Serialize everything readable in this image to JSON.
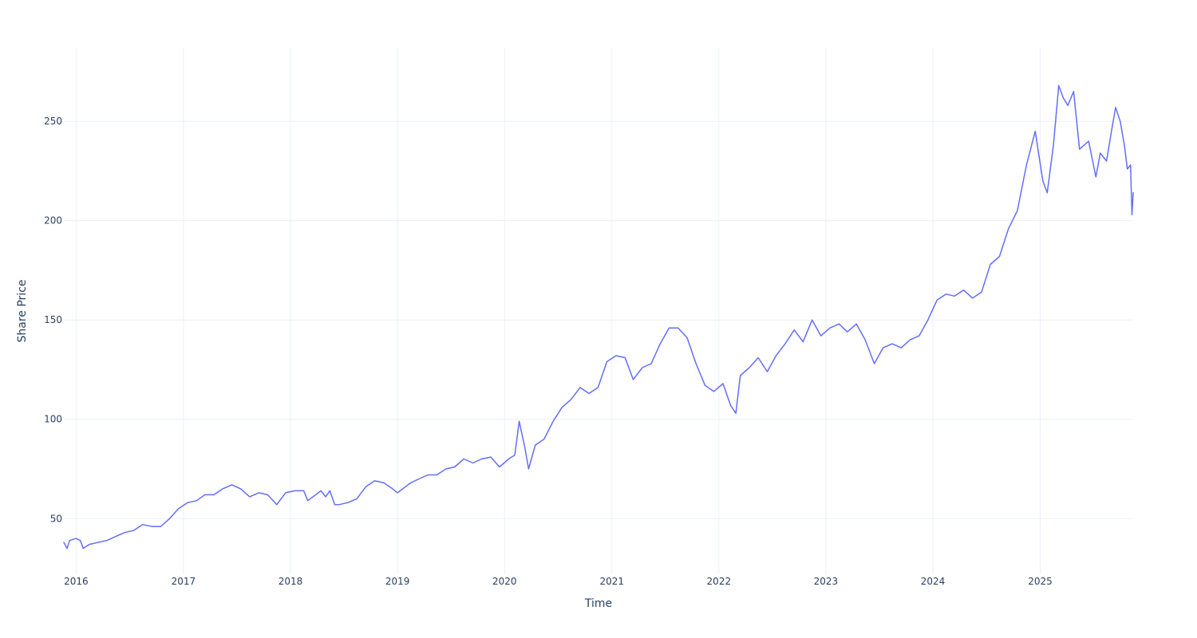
{
  "chart_data": {
    "type": "line",
    "title": "",
    "xlabel": "Time",
    "ylabel": "Share Price",
    "x_type": "date",
    "xlim": [
      "2015-11-20",
      "2025-11-14"
    ],
    "ylim": [
      22,
      287
    ],
    "x_ticks": [
      {
        "value": "2016-01-01",
        "label": "2016"
      },
      {
        "value": "2017-01-01",
        "label": "2017"
      },
      {
        "value": "2018-01-01",
        "label": "2018"
      },
      {
        "value": "2019-01-01",
        "label": "2019"
      },
      {
        "value": "2020-01-01",
        "label": "2020"
      },
      {
        "value": "2021-01-01",
        "label": "2021"
      },
      {
        "value": "2022-01-01",
        "label": "2022"
      },
      {
        "value": "2023-01-01",
        "label": "2023"
      },
      {
        "value": "2024-01-01",
        "label": "2024"
      },
      {
        "value": "2025-01-01",
        "label": "2025"
      }
    ],
    "y_ticks": [
      {
        "value": 50,
        "label": "50"
      },
      {
        "value": 100,
        "label": "100"
      },
      {
        "value": 150,
        "label": "150"
      },
      {
        "value": 200,
        "label": "200"
      },
      {
        "value": 250,
        "label": "250"
      }
    ],
    "grid": true,
    "legend": "none",
    "series": [
      {
        "color": "#636efa",
        "points": [
          [
            "2015-11-20",
            38
          ],
          [
            "2015-12-01",
            35
          ],
          [
            "2015-12-10",
            39
          ],
          [
            "2015-12-31",
            40
          ],
          [
            "2016-01-15",
            39
          ],
          [
            "2016-01-25",
            35
          ],
          [
            "2016-02-15",
            37
          ],
          [
            "2016-03-15",
            38
          ],
          [
            "2016-04-15",
            39
          ],
          [
            "2016-05-15",
            41
          ],
          [
            "2016-06-15",
            43
          ],
          [
            "2016-07-15",
            44
          ],
          [
            "2016-08-15",
            47
          ],
          [
            "2016-09-15",
            46
          ],
          [
            "2016-10-15",
            46
          ],
          [
            "2016-11-15",
            50
          ],
          [
            "2016-12-15",
            55
          ],
          [
            "2017-01-15",
            58
          ],
          [
            "2017-02-15",
            59
          ],
          [
            "2017-03-15",
            62
          ],
          [
            "2017-04-15",
            62
          ],
          [
            "2017-05-15",
            65
          ],
          [
            "2017-06-15",
            67
          ],
          [
            "2017-07-15",
            65
          ],
          [
            "2017-08-15",
            61
          ],
          [
            "2017-09-15",
            63
          ],
          [
            "2017-10-15",
            62
          ],
          [
            "2017-11-15",
            57
          ],
          [
            "2017-12-15",
            63
          ],
          [
            "2018-01-15",
            64
          ],
          [
            "2018-02-15",
            64
          ],
          [
            "2018-03-01",
            59
          ],
          [
            "2018-04-15",
            64
          ],
          [
            "2018-05-01",
            61
          ],
          [
            "2018-05-15",
            64
          ],
          [
            "2018-06-01",
            57
          ],
          [
            "2018-06-15",
            57
          ],
          [
            "2018-07-15",
            58
          ],
          [
            "2018-08-15",
            60
          ],
          [
            "2018-09-15",
            66
          ],
          [
            "2018-10-15",
            69
          ],
          [
            "2018-11-15",
            68
          ],
          [
            "2018-12-15",
            65
          ],
          [
            "2019-01-01",
            63
          ],
          [
            "2019-02-15",
            68
          ],
          [
            "2019-03-15",
            70
          ],
          [
            "2019-04-15",
            72
          ],
          [
            "2019-05-15",
            72
          ],
          [
            "2019-06-15",
            75
          ],
          [
            "2019-07-15",
            76
          ],
          [
            "2019-08-15",
            80
          ],
          [
            "2019-09-15",
            78
          ],
          [
            "2019-10-15",
            80
          ],
          [
            "2019-11-15",
            81
          ],
          [
            "2019-12-15",
            76
          ],
          [
            "2020-01-15",
            80
          ],
          [
            "2020-02-05",
            82
          ],
          [
            "2020-02-20",
            99
          ],
          [
            "2020-03-10",
            86
          ],
          [
            "2020-03-23",
            75
          ],
          [
            "2020-04-15",
            87
          ],
          [
            "2020-05-15",
            90
          ],
          [
            "2020-06-15",
            99
          ],
          [
            "2020-07-15",
            106
          ],
          [
            "2020-08-15",
            110
          ],
          [
            "2020-09-15",
            116
          ],
          [
            "2020-10-15",
            113
          ],
          [
            "2020-11-15",
            116
          ],
          [
            "2020-12-15",
            129
          ],
          [
            "2021-01-15",
            132
          ],
          [
            "2021-02-15",
            131
          ],
          [
            "2021-03-15",
            120
          ],
          [
            "2021-04-15",
            126
          ],
          [
            "2021-05-15",
            128
          ],
          [
            "2021-06-15",
            138
          ],
          [
            "2021-07-15",
            146
          ],
          [
            "2021-08-15",
            146
          ],
          [
            "2021-09-15",
            141
          ],
          [
            "2021-10-15",
            128
          ],
          [
            "2021-11-15",
            117
          ],
          [
            "2021-12-15",
            114
          ],
          [
            "2022-01-15",
            118
          ],
          [
            "2022-02-10",
            107
          ],
          [
            "2022-02-28",
            103
          ],
          [
            "2022-03-15",
            122
          ],
          [
            "2022-04-15",
            126
          ],
          [
            "2022-05-15",
            131
          ],
          [
            "2022-06-15",
            124
          ],
          [
            "2022-07-15",
            132
          ],
          [
            "2022-08-15",
            138
          ],
          [
            "2022-09-15",
            145
          ],
          [
            "2022-10-15",
            139
          ],
          [
            "2022-11-15",
            150
          ],
          [
            "2022-12-15",
            142
          ],
          [
            "2023-01-15",
            146
          ],
          [
            "2023-02-15",
            148
          ],
          [
            "2023-03-15",
            144
          ],
          [
            "2023-04-15",
            148
          ],
          [
            "2023-05-15",
            140
          ],
          [
            "2023-06-15",
            128
          ],
          [
            "2023-07-15",
            136
          ],
          [
            "2023-08-15",
            138
          ],
          [
            "2023-09-15",
            136
          ],
          [
            "2023-10-15",
            140
          ],
          [
            "2023-11-15",
            142
          ],
          [
            "2023-12-15",
            150
          ],
          [
            "2024-01-15",
            160
          ],
          [
            "2024-02-15",
            163
          ],
          [
            "2024-03-15",
            162
          ],
          [
            "2024-04-15",
            165
          ],
          [
            "2024-05-15",
            161
          ],
          [
            "2024-06-15",
            164
          ],
          [
            "2024-07-15",
            178
          ],
          [
            "2024-08-15",
            182
          ],
          [
            "2024-09-15",
            196
          ],
          [
            "2024-10-15",
            205
          ],
          [
            "2024-11-15",
            228
          ],
          [
            "2024-12-15",
            245
          ],
          [
            "2025-01-10",
            220
          ],
          [
            "2025-01-25",
            214
          ],
          [
            "2025-02-15",
            238
          ],
          [
            "2025-03-05",
            268
          ],
          [
            "2025-03-20",
            262
          ],
          [
            "2025-04-05",
            258
          ],
          [
            "2025-04-25",
            265
          ],
          [
            "2025-05-15",
            236
          ],
          [
            "2025-06-15",
            240
          ],
          [
            "2025-07-10",
            222
          ],
          [
            "2025-07-25",
            234
          ],
          [
            "2025-08-15",
            230
          ],
          [
            "2025-09-01",
            245
          ],
          [
            "2025-09-15",
            257
          ],
          [
            "2025-10-01",
            250
          ],
          [
            "2025-10-15",
            238
          ],
          [
            "2025-10-25",
            226
          ],
          [
            "2025-11-05",
            228
          ],
          [
            "2025-11-10",
            203
          ],
          [
            "2025-11-14",
            214
          ]
        ]
      }
    ]
  }
}
